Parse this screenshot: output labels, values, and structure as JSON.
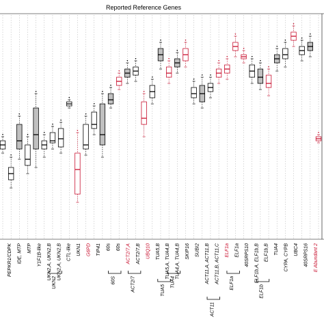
{
  "chart_data": {
    "type": "boxplot",
    "title": "Reported Reference Genes",
    "colors": {
      "black": "#000000",
      "red": "#c8102e",
      "gray_fill": "#c0c0c0"
    },
    "boxes": [
      {
        "label": "",
        "color": "black",
        "fill": "none",
        "q1": 0.4,
        "median": 0.42,
        "q3": 0.44,
        "lo": 0.38,
        "hi": 0.46
      },
      {
        "label": "PEPKR1/CDPK",
        "color": "black",
        "fill": "none",
        "q1": 0.25,
        "median": 0.28,
        "q3": 0.31,
        "lo": 0.21,
        "hi": 0.36
      },
      {
        "label": "IDE, MTP",
        "color": "black",
        "fill": "gray",
        "q1": 0.4,
        "median": 0.44,
        "q3": 0.52,
        "lo": 0.35,
        "hi": 0.56
      },
      {
        "label": "MTP",
        "color": "black",
        "fill": "none",
        "q1": 0.32,
        "median": 0.35,
        "q3": 0.42,
        "lo": 0.28,
        "hi": 0.46
      },
      {
        "label": "Y1F1B-like",
        "color": "black",
        "fill": "gray",
        "q1": 0.4,
        "median": 0.47,
        "q3": 0.6,
        "lo": 0.31,
        "hi": 0.67
      },
      {
        "label": "UKN2,A, UKN2,B",
        "color": "black",
        "fill": "none",
        "q1": 0.4,
        "median": 0.42,
        "q3": 0.44,
        "lo": 0.36,
        "hi": 0.47
      },
      {
        "label": "UKN2,A, UKN2,B",
        "color": "black",
        "fill": "none",
        "q1": 0.43,
        "median": 0.44,
        "q3": 0.48,
        "lo": 0.4,
        "hi": 0.51
      },
      {
        "label": "CTL-like",
        "color": "black",
        "fill": "none",
        "q1": 0.41,
        "median": 0.45,
        "q3": 0.5,
        "lo": 0.38,
        "hi": 0.53
      },
      {
        "label": "UKN1",
        "color": "black",
        "fill": "none",
        "q1": 0.61,
        "median": 0.62,
        "q3": 0.63,
        "lo": 0.6,
        "hi": 0.64
      },
      {
        "label": "G6PD",
        "color": "red",
        "fill": "none",
        "q1": 0.18,
        "median": 0.3,
        "q3": 0.38,
        "lo": 0.14,
        "hi": 0.48
      },
      {
        "label": "TIP41",
        "color": "black",
        "fill": "none",
        "q1": 0.4,
        "median": 0.42,
        "q3": 0.52,
        "lo": 0.37,
        "hi": 0.56
      },
      {
        "label": "60s",
        "color": "black",
        "fill": "none",
        "q1": 0.5,
        "median": 0.52,
        "q3": 0.58,
        "lo": 0.47,
        "hi": 0.61
      },
      {
        "label": "60s",
        "color": "black",
        "fill": "gray",
        "q1": 0.42,
        "median": 0.47,
        "q3": 0.62,
        "lo": 0.36,
        "hi": 0.67
      },
      {
        "label": "60s",
        "color": "black",
        "fill": "gray",
        "q1": 0.62,
        "median": 0.64,
        "q3": 0.67,
        "lo": 0.6,
        "hi": 0.7
      },
      {
        "label": "ACT2/7,A",
        "color": "red",
        "fill": "none",
        "q1": 0.71,
        "median": 0.73,
        "q3": 0.75,
        "lo": 0.69,
        "hi": 0.77
      },
      {
        "label": "ACT2/7",
        "color": "black",
        "fill": "gray",
        "q1": 0.75,
        "median": 0.77,
        "q3": 0.79,
        "lo": 0.72,
        "hi": 0.82
      },
      {
        "label": "ACT2/7,B",
        "color": "black",
        "fill": "none",
        "q1": 0.76,
        "median": 0.78,
        "q3": 0.8,
        "lo": 0.73,
        "hi": 0.83
      },
      {
        "label": "UBQ10",
        "color": "red",
        "fill": "none",
        "q1": 0.52,
        "median": 0.55,
        "q3": 0.63,
        "lo": 0.46,
        "hi": 0.67
      },
      {
        "label": "TUA5,B",
        "color": "black",
        "fill": "none",
        "q1": 0.65,
        "median": 0.68,
        "q3": 0.71,
        "lo": 0.62,
        "hi": 0.74
      },
      {
        "label": "TUA5,A",
        "color": "black",
        "fill": "gray",
        "q1": 0.83,
        "median": 0.86,
        "q3": 0.89,
        "lo": 0.79,
        "hi": 0.92
      },
      {
        "label": "TUA4,B",
        "color": "red",
        "fill": "none",
        "q1": 0.75,
        "median": 0.77,
        "q3": 0.8,
        "lo": 0.72,
        "hi": 0.83
      },
      {
        "label": "TUA4,A",
        "color": "black",
        "fill": "gray",
        "q1": 0.8,
        "median": 0.82,
        "q3": 0.84,
        "lo": 0.77,
        "hi": 0.87
      },
      {
        "label": "TUA4,B",
        "color": "red",
        "fill": "none",
        "q1": 0.83,
        "median": 0.86,
        "q3": 0.89,
        "lo": 0.8,
        "hi": 0.92
      },
      {
        "label": "SKIP16",
        "color": "black",
        "fill": "none",
        "q1": 0.65,
        "median": 0.67,
        "q3": 0.7,
        "lo": 0.62,
        "hi": 0.73
      },
      {
        "label": "SUBI2",
        "color": "black",
        "fill": "gray",
        "q1": 0.63,
        "median": 0.67,
        "q3": 0.71,
        "lo": 0.6,
        "hi": 0.75
      },
      {
        "label": "ACT11,A, ACT11,B",
        "color": "black",
        "fill": "none",
        "q1": 0.68,
        "median": 0.7,
        "q3": 0.72,
        "lo": 0.65,
        "hi": 0.75
      },
      {
        "label": "ACT11,A",
        "color": "red",
        "fill": "none",
        "q1": 0.75,
        "median": 0.77,
        "q3": 0.79,
        "lo": 0.72,
        "hi": 0.82
      },
      {
        "label": "ACT11,C",
        "color": "red",
        "fill": "none",
        "q1": 0.77,
        "median": 0.79,
        "q3": 0.81,
        "lo": 0.74,
        "hi": 0.84
      },
      {
        "label": "ELF1a",
        "color": "red",
        "fill": "none",
        "q1": 0.88,
        "median": 0.9,
        "q3": 0.92,
        "lo": 0.85,
        "hi": 0.95
      },
      {
        "label": "ELF1a",
        "color": "red",
        "fill": "none",
        "q1": 0.84,
        "median": 0.85,
        "q3": 0.86,
        "lo": 0.82,
        "hi": 0.88
      },
      {
        "label": "40SRPS10",
        "color": "black",
        "fill": "none",
        "q1": 0.75,
        "median": 0.78,
        "q3": 0.81,
        "lo": 0.72,
        "hi": 0.84
      },
      {
        "label": "ELF1b,A ELF1b,B",
        "color": "black",
        "fill": "gray",
        "q1": 0.72,
        "median": 0.75,
        "q3": 0.79,
        "lo": 0.69,
        "hi": 0.82
      },
      {
        "label": "ELF1b,B",
        "color": "red",
        "fill": "none",
        "q1": 0.7,
        "median": 0.72,
        "q3": 0.76,
        "lo": 0.66,
        "hi": 0.79
      },
      {
        "label": "TUA4",
        "color": "black",
        "fill": "gray",
        "q1": 0.82,
        "median": 0.84,
        "q3": 0.86,
        "lo": 0.78,
        "hi": 0.89
      },
      {
        "label": "CYPA",
        "color": "black",
        "fill": "none",
        "q1": 0.84,
        "median": 0.86,
        "q3": 0.89,
        "lo": 0.8,
        "hi": 0.92
      },
      {
        "label": "CYPB",
        "color": "red",
        "fill": "none",
        "q1": 0.93,
        "median": 0.95,
        "q3": 0.97,
        "lo": 0.9,
        "hi": 1.0
      },
      {
        "label": "UBC4",
        "color": "black",
        "fill": "none",
        "q1": 0.86,
        "median": 0.88,
        "q3": 0.9,
        "lo": 0.83,
        "hi": 0.93
      },
      {
        "label": "40SRPS16",
        "color": "black",
        "fill": "gray",
        "q1": 0.88,
        "median": 0.9,
        "q3": 0.92,
        "lo": 0.85,
        "hi": 0.95
      },
      {
        "label": "",
        "color": "red",
        "fill": "none",
        "q1": 0.44,
        "median": 0.45,
        "q3": 0.46,
        "lo": 0.43,
        "hi": 0.47
      }
    ],
    "x_labels": [
      {
        "text": "PEPKR1/CDPK",
        "color": "black"
      },
      {
        "text": "IDE, MTP",
        "color": "black"
      },
      {
        "text": "MTP",
        "color": "black"
      },
      {
        "text": "Y1F1B-like",
        "color": "black"
      },
      {
        "text": "UKN2,A, UKN2,B",
        "color": "black"
      },
      {
        "text": "UKN2,A, UKN2,B",
        "color": "black"
      },
      {
        "text": "CTL-like",
        "color": "black"
      },
      {
        "text": "UKN1",
        "color": "black"
      },
      {
        "text": "G6PD",
        "color": "red"
      },
      {
        "text": "TIP41",
        "color": "black"
      },
      {
        "text": "60s",
        "color": "black"
      },
      {
        "text": "60s",
        "color": "black"
      },
      {
        "text": "ACT2/7,A",
        "color": "red"
      },
      {
        "text": "ACT2/7,B",
        "color": "black"
      },
      {
        "text": "UBQ10",
        "color": "red"
      },
      {
        "text": "TUA5,B",
        "color": "black"
      },
      {
        "text": "TUA5,A, TUA4,B",
        "color": "black"
      },
      {
        "text": "TUA4,A, TUA4,B",
        "color": "black"
      },
      {
        "text": "SKIP16",
        "color": "black"
      },
      {
        "text": "SUBI2",
        "color": "black"
      },
      {
        "text": "ACT11,A, ACT11,B",
        "color": "black"
      },
      {
        "text": "ACT11,B, ACT11,C",
        "color": "black"
      },
      {
        "text": "ELF1a",
        "color": "red"
      },
      {
        "text": "ELF1a",
        "color": "black"
      },
      {
        "text": "40SRPS10",
        "color": "black"
      },
      {
        "text": "ELF1b,A, ELF1b,B",
        "color": "black"
      },
      {
        "text": "ELF1b,B",
        "color": "black"
      },
      {
        "text": "TUA4",
        "color": "black"
      },
      {
        "text": "CYPA, CYPB",
        "color": "black"
      },
      {
        "text": "UBC4",
        "color": "black"
      },
      {
        "text": "40SRPS16",
        "color": "black"
      },
      {
        "text": "E Abundant 2",
        "color": "red"
      }
    ],
    "group_labels": [
      {
        "text": "UKN2"
      },
      {
        "text": "60S"
      },
      {
        "text": "ACT2/7"
      },
      {
        "text": "TUA5"
      },
      {
        "text": "TUA4"
      },
      {
        "text": "ACT11"
      },
      {
        "text": "ELF1a"
      },
      {
        "text": "ELF1b"
      }
    ]
  }
}
